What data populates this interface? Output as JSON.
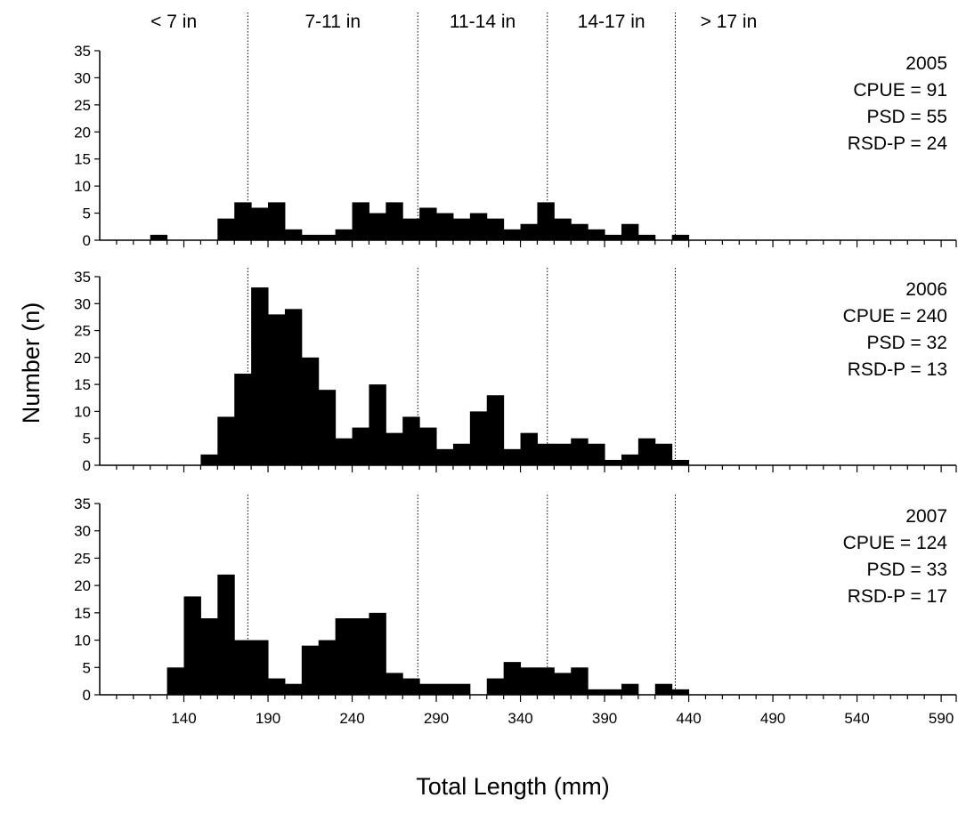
{
  "chart_data": {
    "type": "bar",
    "subtype": "stacked-panel histograms",
    "xlabel": "Total Length (mm)",
    "ylabel": "Number (n)",
    "xlim": [
      90,
      600
    ],
    "ylim": [
      0,
      35
    ],
    "y_ticks": [
      "0",
      "5",
      "10",
      "15",
      "20",
      "25",
      "30",
      "35"
    ],
    "x_ticks": [
      "140",
      "190",
      "240",
      "290",
      "340",
      "390",
      "440",
      "490",
      "540",
      "590"
    ],
    "x_tick_values": [
      140,
      190,
      240,
      290,
      340,
      390,
      440,
      490,
      540,
      590
    ],
    "bin_width_mm": 10,
    "size_classes": [
      "< 7 in",
      "7-11 in",
      "11-14 in",
      "14-17 in",
      "> 17 in"
    ],
    "size_class_boundaries_mm": [
      178,
      279,
      356,
      432
    ],
    "panels": [
      {
        "year": "2005",
        "stats": [
          "CPUE = 91",
          "PSD = 55",
          "RSD-P = 24"
        ],
        "bins": [
          {
            "x": 120,
            "n": 1
          },
          {
            "x": 160,
            "n": 4
          },
          {
            "x": 170,
            "n": 7
          },
          {
            "x": 180,
            "n": 6
          },
          {
            "x": 190,
            "n": 7
          },
          {
            "x": 200,
            "n": 2
          },
          {
            "x": 210,
            "n": 1
          },
          {
            "x": 220,
            "n": 1
          },
          {
            "x": 230,
            "n": 2
          },
          {
            "x": 240,
            "n": 7
          },
          {
            "x": 250,
            "n": 5
          },
          {
            "x": 260,
            "n": 7
          },
          {
            "x": 270,
            "n": 4
          },
          {
            "x": 280,
            "n": 6
          },
          {
            "x": 290,
            "n": 5
          },
          {
            "x": 300,
            "n": 4
          },
          {
            "x": 310,
            "n": 5
          },
          {
            "x": 320,
            "n": 4
          },
          {
            "x": 330,
            "n": 2
          },
          {
            "x": 340,
            "n": 3
          },
          {
            "x": 350,
            "n": 7
          },
          {
            "x": 360,
            "n": 4
          },
          {
            "x": 370,
            "n": 3
          },
          {
            "x": 380,
            "n": 2
          },
          {
            "x": 390,
            "n": 1
          },
          {
            "x": 400,
            "n": 3
          },
          {
            "x": 410,
            "n": 1
          },
          {
            "x": 430,
            "n": 1
          }
        ]
      },
      {
        "year": "2006",
        "stats": [
          "CPUE = 240",
          "PSD = 32",
          "RSD-P = 13"
        ],
        "bins": [
          {
            "x": 150,
            "n": 2
          },
          {
            "x": 160,
            "n": 9
          },
          {
            "x": 170,
            "n": 17
          },
          {
            "x": 180,
            "n": 33
          },
          {
            "x": 190,
            "n": 28
          },
          {
            "x": 200,
            "n": 29
          },
          {
            "x": 210,
            "n": 20
          },
          {
            "x": 220,
            "n": 14
          },
          {
            "x": 230,
            "n": 5
          },
          {
            "x": 240,
            "n": 7
          },
          {
            "x": 250,
            "n": 15
          },
          {
            "x": 260,
            "n": 6
          },
          {
            "x": 270,
            "n": 9
          },
          {
            "x": 280,
            "n": 7
          },
          {
            "x": 290,
            "n": 3
          },
          {
            "x": 300,
            "n": 4
          },
          {
            "x": 310,
            "n": 10
          },
          {
            "x": 320,
            "n": 13
          },
          {
            "x": 330,
            "n": 3
          },
          {
            "x": 340,
            "n": 6
          },
          {
            "x": 350,
            "n": 4
          },
          {
            "x": 360,
            "n": 4
          },
          {
            "x": 370,
            "n": 5
          },
          {
            "x": 380,
            "n": 4
          },
          {
            "x": 390,
            "n": 1
          },
          {
            "x": 400,
            "n": 2
          },
          {
            "x": 410,
            "n": 5
          },
          {
            "x": 420,
            "n": 4
          },
          {
            "x": 430,
            "n": 1
          }
        ]
      },
      {
        "year": "2007",
        "stats": [
          "CPUE = 124",
          "PSD = 33",
          "RSD-P = 17"
        ],
        "bins": [
          {
            "x": 130,
            "n": 5
          },
          {
            "x": 140,
            "n": 18
          },
          {
            "x": 150,
            "n": 14
          },
          {
            "x": 160,
            "n": 22
          },
          {
            "x": 170,
            "n": 10
          },
          {
            "x": 180,
            "n": 10
          },
          {
            "x": 190,
            "n": 3
          },
          {
            "x": 200,
            "n": 2
          },
          {
            "x": 210,
            "n": 9
          },
          {
            "x": 220,
            "n": 10
          },
          {
            "x": 230,
            "n": 14
          },
          {
            "x": 240,
            "n": 14
          },
          {
            "x": 250,
            "n": 15
          },
          {
            "x": 260,
            "n": 4
          },
          {
            "x": 270,
            "n": 3
          },
          {
            "x": 280,
            "n": 2
          },
          {
            "x": 290,
            "n": 2
          },
          {
            "x": 300,
            "n": 2
          },
          {
            "x": 320,
            "n": 3
          },
          {
            "x": 330,
            "n": 6
          },
          {
            "x": 340,
            "n": 5
          },
          {
            "x": 350,
            "n": 5
          },
          {
            "x": 360,
            "n": 4
          },
          {
            "x": 370,
            "n": 5
          },
          {
            "x": 380,
            "n": 1
          },
          {
            "x": 390,
            "n": 1
          },
          {
            "x": 400,
            "n": 2
          },
          {
            "x": 420,
            "n": 2
          },
          {
            "x": 430,
            "n": 1
          }
        ]
      }
    ],
    "colors": {
      "bar": "#000000",
      "axis": "#000000",
      "background": "#ffffff"
    }
  }
}
